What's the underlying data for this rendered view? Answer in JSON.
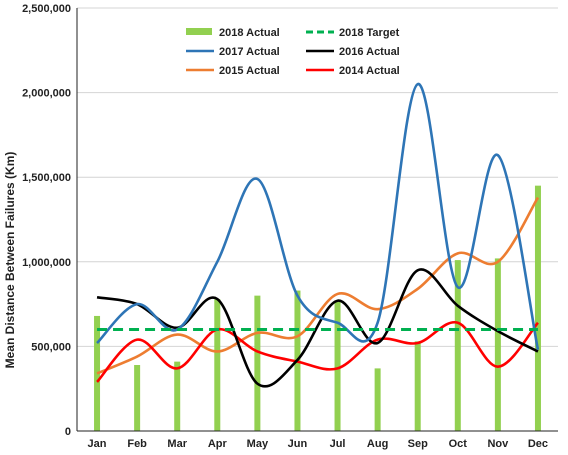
{
  "chart_data": {
    "type": "line",
    "title": "",
    "xlabel": "",
    "ylabel": "Mean Distance Between Failures (Km)",
    "categories": [
      "Jan",
      "Feb",
      "Mar",
      "Apr",
      "May",
      "Jun",
      "Jul",
      "Aug",
      "Sep",
      "Oct",
      "Nov",
      "Dec"
    ],
    "ylim": [
      0,
      2500000
    ],
    "yticks": [
      0,
      500000,
      1000000,
      1500000,
      2000000,
      2500000
    ],
    "ytick_labels": [
      "0",
      "500,000",
      "1,000,000",
      "1,500,000",
      "2,000,000",
      "2,500,000"
    ],
    "grid": true,
    "legend_position": "top-center",
    "bar_series": {
      "name": "2018 Actual",
      "color": "#92d050",
      "values": [
        680000,
        390000,
        410000,
        780000,
        800000,
        830000,
        770000,
        370000,
        530000,
        1010000,
        1020000,
        1450000
      ]
    },
    "target_series": {
      "name": "2018 Target",
      "color": "#00b050",
      "value": 600000
    },
    "series": [
      {
        "name": "2017 Actual",
        "color": "#2e75b6",
        "values": [
          520000,
          750000,
          600000,
          1000000,
          1490000,
          800000,
          640000,
          640000,
          2050000,
          850000,
          1630000,
          480000
        ]
      },
      {
        "name": "2016 Actual",
        "color": "#000000",
        "values": [
          790000,
          750000,
          610000,
          780000,
          280000,
          420000,
          770000,
          520000,
          950000,
          740000,
          590000,
          470000
        ]
      },
      {
        "name": "2015 Actual",
        "color": "#ed7d31",
        "values": [
          340000,
          440000,
          570000,
          470000,
          580000,
          560000,
          810000,
          720000,
          840000,
          1050000,
          1000000,
          1380000
        ]
      },
      {
        "name": "2014 Actual",
        "color": "#ff0000",
        "values": [
          290000,
          540000,
          370000,
          600000,
          470000,
          410000,
          370000,
          540000,
          520000,
          640000,
          380000,
          640000
        ]
      }
    ]
  }
}
